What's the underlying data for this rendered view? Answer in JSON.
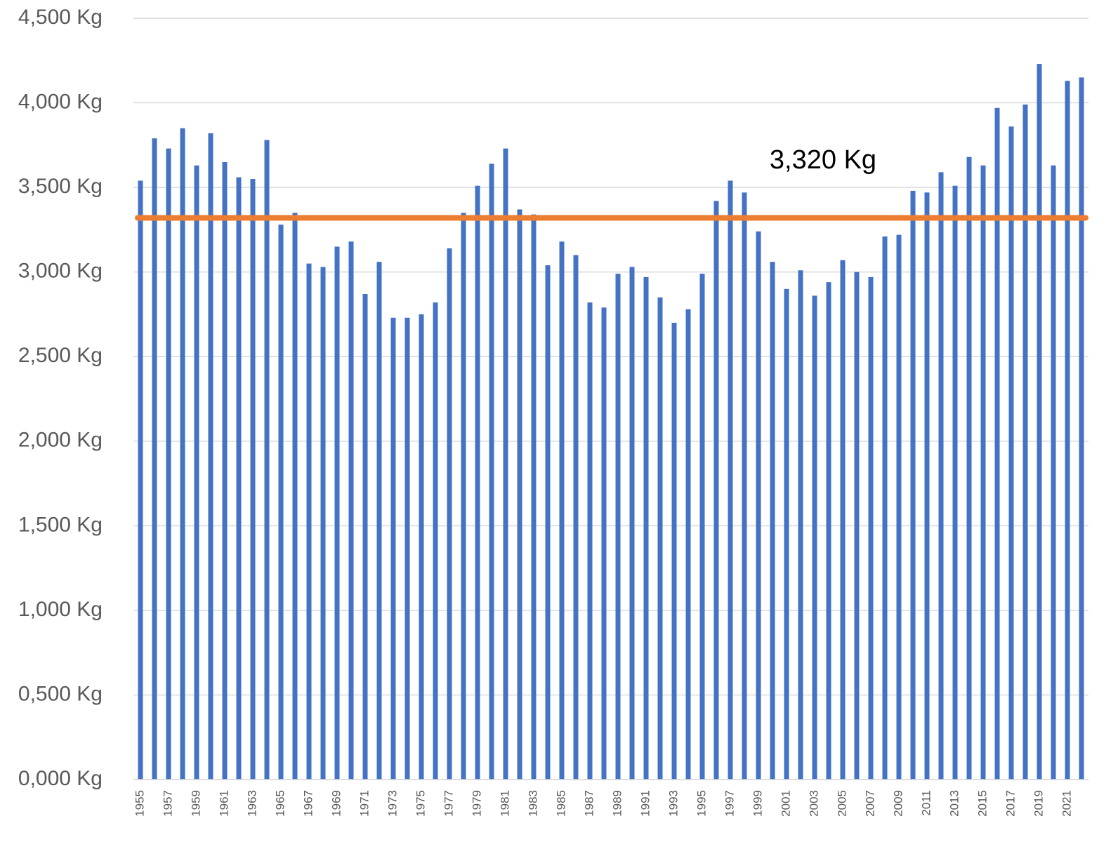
{
  "chart_data": {
    "type": "bar",
    "categories": [
      "1955",
      null,
      "1957",
      null,
      "1959",
      null,
      "1961",
      null,
      "1963",
      null,
      "1965",
      null,
      "1967",
      null,
      "1969",
      null,
      "1971",
      null,
      "1973",
      null,
      "1975",
      null,
      "1977",
      null,
      "1979",
      null,
      "1981",
      null,
      "1983",
      null,
      "1985",
      null,
      "1987",
      null,
      "1989",
      null,
      "1991",
      null,
      "1993",
      null,
      "1995",
      null,
      "1997",
      null,
      "1999",
      null,
      "2001",
      null,
      "2003",
      null,
      "2005",
      null,
      "2007",
      null,
      "2009",
      null,
      "2011",
      null,
      "2013",
      null,
      "2015",
      null,
      "2017",
      null,
      "2019",
      null,
      "2021",
      null
    ],
    "values": [
      3540,
      3790,
      3730,
      3850,
      3630,
      3820,
      3650,
      3560,
      3550,
      3780,
      3280,
      3350,
      3050,
      3030,
      3150,
      3180,
      2870,
      3060,
      2730,
      2730,
      2750,
      2820,
      3140,
      3350,
      3510,
      3640,
      3730,
      3370,
      3340,
      3040,
      3180,
      3100,
      2820,
      2790,
      2990,
      3030,
      2970,
      2850,
      2700,
      2780,
      2990,
      3420,
      3540,
      3470,
      3240,
      3060,
      2900,
      3010,
      2860,
      2940,
      3070,
      3000,
      2970,
      3210,
      3220,
      3480,
      3470,
      3590,
      3510,
      3680,
      3630,
      3970,
      3860,
      3990,
      4230,
      3630,
      4130,
      4150
    ],
    "color": "#4472c4",
    "ylim": [
      0,
      4500
    ],
    "yticks": [
      {
        "value": 0,
        "label": "0,000 Kg"
      },
      {
        "value": 500,
        "label": "0,500 Kg"
      },
      {
        "value": 1000,
        "label": "1,000 Kg"
      },
      {
        "value": 1500,
        "label": "1,500 Kg"
      },
      {
        "value": 2000,
        "label": "2,000 Kg"
      },
      {
        "value": 2500,
        "label": "2,500 Kg"
      },
      {
        "value": 3000,
        "label": "3,000 Kg"
      },
      {
        "value": 3500,
        "label": "3,500 Kg"
      },
      {
        "value": 4000,
        "label": "4,000 Kg"
      },
      {
        "value": 4500,
        "label": "4,500 Kg"
      }
    ],
    "grid": true,
    "reference_line": {
      "value": 3320,
      "label": "3,320 Kg",
      "color": "#ed7d31"
    }
  }
}
